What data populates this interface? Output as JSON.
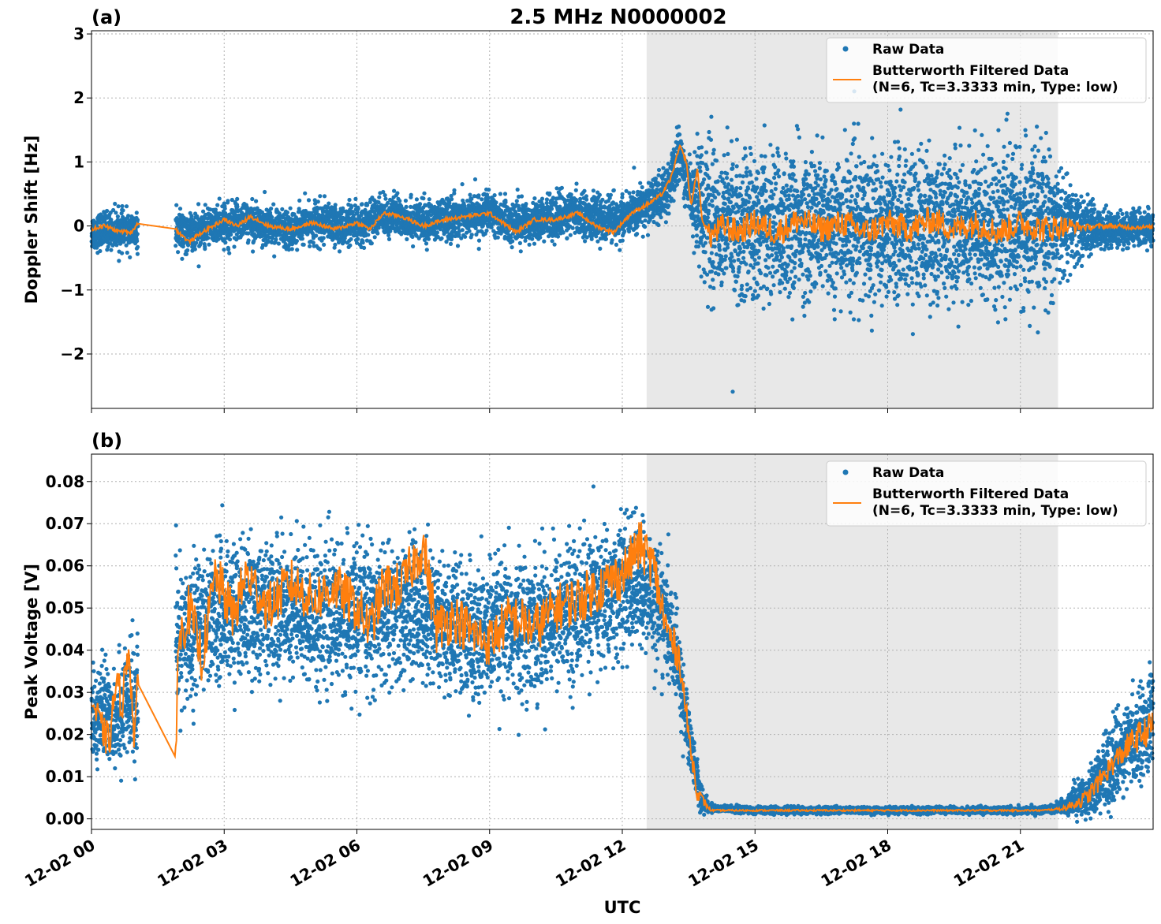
{
  "figure": {
    "title": "2.5 MHz N0000002",
    "xlabel": "UTC",
    "x_tick_labels": [
      "12-02 00",
      "12-02 03",
      "12-02 06",
      "12-02 09",
      "12-02 12",
      "12-02 15",
      "12-02 18",
      "12-02 21"
    ],
    "colors": {
      "raw": "#1f77b4",
      "filtered": "#ff7f0e",
      "shade": "#e8e8e8",
      "grid": "#b0b0b0"
    }
  },
  "legend": {
    "raw_label": "Raw Data",
    "filtered_label_1": "Butterworth Filtered Data",
    "filtered_label_2": "(N=6, Tc=3.3333 min, Type: low)"
  },
  "chart_data": [
    {
      "type": "scatter",
      "panel_label": "(a)",
      "ylabel": "Doppler Shift [Hz]",
      "xlim": [
        0,
        24
      ],
      "ylim": [
        -2.85,
        3.05
      ],
      "y_ticks": [
        -2,
        -1,
        0,
        1,
        2,
        3
      ],
      "y_tick_labels": [
        "−2",
        "−1",
        "0",
        "1",
        "2",
        "3"
      ],
      "x_ticks_hours": [
        0,
        3,
        6,
        9,
        12,
        15,
        18,
        21
      ],
      "grid": true,
      "legend_position": "top-right",
      "shaded_span_hours": [
        12.55,
        21.85
      ],
      "series": [
        {
          "name": "Raw Data",
          "kind": "scatter",
          "gaps_hours": [
            [
              1.05,
              1.9
            ]
          ],
          "center_hz": [
            [
              0,
              -0.1
            ],
            [
              0.5,
              -0.05
            ],
            [
              1.0,
              -0.1
            ],
            [
              1.9,
              -0.1
            ],
            [
              2.5,
              -0.05
            ],
            [
              3.0,
              0.05
            ],
            [
              3.5,
              0.1
            ],
            [
              4.0,
              0.0
            ],
            [
              4.5,
              -0.05
            ],
            [
              5.0,
              0.05
            ],
            [
              5.5,
              0.0
            ],
            [
              6.0,
              0.0
            ],
            [
              6.5,
              0.15
            ],
            [
              7.0,
              0.15
            ],
            [
              7.5,
              0.05
            ],
            [
              8.0,
              0.1
            ],
            [
              8.5,
              0.15
            ],
            [
              9.0,
              0.2
            ],
            [
              9.5,
              0.05
            ],
            [
              10.0,
              0.1
            ],
            [
              10.5,
              0.15
            ],
            [
              11.0,
              0.2
            ],
            [
              11.5,
              0.1
            ],
            [
              12.0,
              0.1
            ],
            [
              12.5,
              0.3
            ],
            [
              13.0,
              0.5
            ],
            [
              13.3,
              1.15
            ],
            [
              13.5,
              0.6
            ],
            [
              14.0,
              0.1
            ],
            [
              15,
              0.0
            ],
            [
              16,
              0.0
            ],
            [
              17,
              0.0
            ],
            [
              18,
              0.0
            ],
            [
              19,
              0.0
            ],
            [
              20,
              0.0
            ],
            [
              21,
              0.0
            ],
            [
              22,
              0.0
            ],
            [
              23,
              -0.05
            ],
            [
              24,
              -0.05
            ]
          ],
          "spread_hz": [
            [
              0,
              0.25
            ],
            [
              12.5,
              0.3
            ],
            [
              13.5,
              0.4
            ],
            [
              13.7,
              0.8
            ],
            [
              14.0,
              1.0
            ],
            [
              21.5,
              1.0
            ],
            [
              22.3,
              0.5
            ],
            [
              22.8,
              0.25
            ],
            [
              24,
              0.25
            ]
          ]
        },
        {
          "name": "Butterworth Filtered Data (N=6, Tc=3.3333 min, Type: low)",
          "kind": "line",
          "points": [
            [
              0,
              -0.05
            ],
            [
              0.3,
              0.0
            ],
            [
              0.6,
              -0.08
            ],
            [
              0.9,
              -0.1
            ],
            [
              1.05,
              0.05
            ],
            [
              1.9,
              -0.05
            ],
            [
              2.2,
              -0.25
            ],
            [
              2.5,
              -0.1
            ],
            [
              3.0,
              0.1
            ],
            [
              3.3,
              0.0
            ],
            [
              3.6,
              0.15
            ],
            [
              4.0,
              0.0
            ],
            [
              4.5,
              -0.05
            ],
            [
              5.0,
              0.05
            ],
            [
              5.5,
              -0.05
            ],
            [
              6.0,
              0.05
            ],
            [
              6.3,
              -0.05
            ],
            [
              6.6,
              0.2
            ],
            [
              7.0,
              0.15
            ],
            [
              7.5,
              0.0
            ],
            [
              8.0,
              0.1
            ],
            [
              8.5,
              0.15
            ],
            [
              9.0,
              0.2
            ],
            [
              9.3,
              0.05
            ],
            [
              9.6,
              -0.1
            ],
            [
              10.0,
              0.1
            ],
            [
              10.5,
              0.1
            ],
            [
              11.0,
              0.2
            ],
            [
              11.4,
              0.0
            ],
            [
              11.8,
              -0.1
            ],
            [
              12.2,
              0.2
            ],
            [
              12.6,
              0.35
            ],
            [
              12.9,
              0.5
            ],
            [
              13.1,
              0.75
            ],
            [
              13.3,
              1.25
            ],
            [
              13.45,
              1.0
            ],
            [
              13.55,
              0.3
            ],
            [
              13.7,
              0.9
            ],
            [
              13.8,
              0.1
            ],
            [
              14.0,
              -0.15
            ],
            [
              14.3,
              0.0
            ],
            [
              14.6,
              -0.1
            ],
            [
              15,
              0.05
            ],
            [
              15.5,
              -0.1
            ],
            [
              16,
              0.1
            ],
            [
              16.5,
              -0.05
            ],
            [
              17,
              0.05
            ],
            [
              17.5,
              -0.1
            ],
            [
              18,
              0.05
            ],
            [
              18.5,
              -0.05
            ],
            [
              19,
              0.1
            ],
            [
              19.5,
              -0.05
            ],
            [
              20,
              0.05
            ],
            [
              20.5,
              -0.1
            ],
            [
              21,
              0.05
            ],
            [
              21.5,
              -0.05
            ],
            [
              22,
              0.0
            ],
            [
              22.5,
              -0.02
            ],
            [
              23,
              0.0
            ],
            [
              23.5,
              -0.02
            ],
            [
              24,
              -0.02
            ]
          ],
          "noise_amplitude_hz": [
            [
              0,
              0.03
            ],
            [
              13.9,
              0.03
            ],
            [
              14.0,
              0.22
            ],
            [
              21.8,
              0.22
            ],
            [
              22.4,
              0.05
            ],
            [
              24,
              0.03
            ]
          ]
        }
      ]
    },
    {
      "type": "scatter",
      "panel_label": "(b)",
      "ylabel": "Peak Voltage [V]",
      "xlim": [
        0,
        24
      ],
      "ylim": [
        -0.0025,
        0.0865
      ],
      "y_ticks": [
        0.0,
        0.01,
        0.02,
        0.03,
        0.04,
        0.05,
        0.06,
        0.07,
        0.08
      ],
      "y_tick_labels": [
        "0.00",
        "0.01",
        "0.02",
        "0.03",
        "0.04",
        "0.05",
        "0.06",
        "0.07",
        "0.08"
      ],
      "x_ticks_hours": [
        0,
        3,
        6,
        9,
        12,
        15,
        18,
        21
      ],
      "x_tick_labels": [
        "12-02 00",
        "12-02 03",
        "12-02 06",
        "12-02 09",
        "12-02 12",
        "12-02 15",
        "12-02 18",
        "12-02 21"
      ],
      "grid": true,
      "legend_position": "top-right",
      "shaded_span_hours": [
        12.55,
        21.85
      ],
      "series": [
        {
          "name": "Raw Data",
          "kind": "scatter",
          "gaps_hours": [
            [
              1.05,
              1.9
            ]
          ],
          "center_v": [
            [
              0,
              0.025
            ],
            [
              0.5,
              0.025
            ],
            [
              1.0,
              0.028
            ],
            [
              1.9,
              0.04
            ],
            [
              2.5,
              0.048
            ],
            [
              3.5,
              0.05
            ],
            [
              4.5,
              0.05
            ],
            [
              5.5,
              0.048
            ],
            [
              6.5,
              0.048
            ],
            [
              7.5,
              0.05
            ],
            [
              8.5,
              0.043
            ],
            [
              9.5,
              0.045
            ],
            [
              10.5,
              0.048
            ],
            [
              11.5,
              0.052
            ],
            [
              12.3,
              0.056
            ],
            [
              12.8,
              0.052
            ],
            [
              13.2,
              0.04
            ],
            [
              13.5,
              0.02
            ],
            [
              13.8,
              0.004
            ],
            [
              14.0,
              0.0025
            ],
            [
              15,
              0.002
            ],
            [
              18,
              0.002
            ],
            [
              21.5,
              0.002
            ],
            [
              22.0,
              0.003
            ],
            [
              22.5,
              0.006
            ],
            [
              23.0,
              0.012
            ],
            [
              23.5,
              0.018
            ],
            [
              24,
              0.024
            ]
          ],
          "spread_v": [
            [
              0,
              0.01
            ],
            [
              1.9,
              0.014
            ],
            [
              12.5,
              0.014
            ],
            [
              13.2,
              0.01
            ],
            [
              13.7,
              0.004
            ],
            [
              14.0,
              0.0007
            ],
            [
              21.6,
              0.0007
            ],
            [
              22.0,
              0.0015
            ],
            [
              23.0,
              0.008
            ],
            [
              24,
              0.01
            ]
          ]
        },
        {
          "name": "Butterworth Filtered Data (N=6, Tc=3.3333 min, Type: low)",
          "kind": "line",
          "points": [
            [
              0,
              0.028
            ],
            [
              0.2,
              0.022
            ],
            [
              0.4,
              0.018
            ],
            [
              0.55,
              0.032
            ],
            [
              0.7,
              0.028
            ],
            [
              0.85,
              0.042
            ],
            [
              0.95,
              0.02
            ],
            [
              1.05,
              0.03
            ],
            [
              1.85,
              0.017
            ],
            [
              1.9,
              0.014
            ],
            [
              1.95,
              0.04
            ],
            [
              2.2,
              0.05
            ],
            [
              2.5,
              0.038
            ],
            [
              2.8,
              0.058
            ],
            [
              3.2,
              0.048
            ],
            [
              3.5,
              0.058
            ],
            [
              4.0,
              0.05
            ],
            [
              4.5,
              0.056
            ],
            [
              5.0,
              0.052
            ],
            [
              5.5,
              0.055
            ],
            [
              6.0,
              0.05
            ],
            [
              6.3,
              0.045
            ],
            [
              6.6,
              0.055
            ],
            [
              7.0,
              0.055
            ],
            [
              7.5,
              0.065
            ],
            [
              7.8,
              0.045
            ],
            [
              8.2,
              0.048
            ],
            [
              8.6,
              0.044
            ],
            [
              9.0,
              0.042
            ],
            [
              9.5,
              0.048
            ],
            [
              10.0,
              0.045
            ],
            [
              10.5,
              0.05
            ],
            [
              11.0,
              0.052
            ],
            [
              11.5,
              0.055
            ],
            [
              12.0,
              0.058
            ],
            [
              12.4,
              0.065
            ],
            [
              12.7,
              0.06
            ],
            [
              13.0,
              0.045
            ],
            [
              13.3,
              0.038
            ],
            [
              13.5,
              0.02
            ],
            [
              13.7,
              0.006
            ],
            [
              14.0,
              0.002
            ],
            [
              15,
              0.002
            ],
            [
              18,
              0.002
            ],
            [
              21.5,
              0.002
            ],
            [
              22.0,
              0.0025
            ],
            [
              22.5,
              0.005
            ],
            [
              23.0,
              0.012
            ],
            [
              23.5,
              0.018
            ],
            [
              24,
              0.022
            ]
          ],
          "noise_amplitude_v": [
            [
              0,
              0.004
            ],
            [
              1.9,
              0.006
            ],
            [
              12.8,
              0.006
            ],
            [
              13.5,
              0.003
            ],
            [
              14.0,
              0.0002
            ],
            [
              21.8,
              0.0002
            ],
            [
              22.5,
              0.002
            ],
            [
              24,
              0.004
            ]
          ]
        }
      ]
    }
  ]
}
